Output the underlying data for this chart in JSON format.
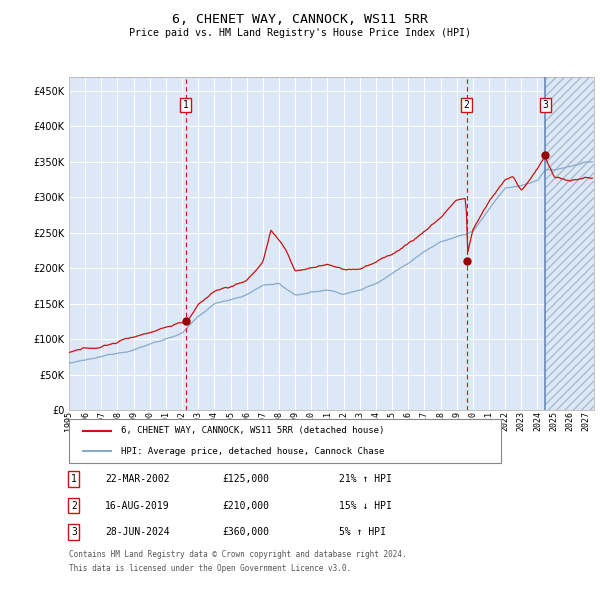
{
  "title": "6, CHENET WAY, CANNOCK, WS11 5RR",
  "subtitle": "Price paid vs. HM Land Registry's House Price Index (HPI)",
  "xlim_start": 1995.0,
  "xlim_end": 2027.5,
  "ylim_min": 0,
  "ylim_max": 470000,
  "yticks": [
    0,
    50000,
    100000,
    150000,
    200000,
    250000,
    300000,
    350000,
    400000,
    450000
  ],
  "background_color": "#dce8f5",
  "grid_color": "#ffffff",
  "hpi_color": "#88aacc",
  "price_color": "#cc1111",
  "legend_label_price": "6, CHENET WAY, CANNOCK, WS11 5RR (detached house)",
  "legend_label_hpi": "HPI: Average price, detached house, Cannock Chase",
  "transactions": [
    {
      "num": 1,
      "date": "22-MAR-2002",
      "price": 125000,
      "pct": "21% ↑ HPI",
      "year": 2002.22
    },
    {
      "num": 2,
      "date": "16-AUG-2019",
      "price": 210000,
      "pct": "15% ↓ HPI",
      "year": 2019.62
    },
    {
      "num": 3,
      "date": "28-JUN-2024",
      "price": 360000,
      "pct": "5% ↑ HPI",
      "year": 2024.49
    }
  ],
  "footer1": "Contains HM Land Registry data © Crown copyright and database right 2024.",
  "footer2": "This data is licensed under the Open Government Licence v3.0.",
  "xtick_years": [
    1995,
    1996,
    1997,
    1998,
    1999,
    2000,
    2001,
    2002,
    2003,
    2004,
    2005,
    2006,
    2007,
    2008,
    2009,
    2010,
    2011,
    2012,
    2013,
    2014,
    2015,
    2016,
    2017,
    2018,
    2019,
    2020,
    2021,
    2022,
    2023,
    2024,
    2025,
    2026,
    2027
  ]
}
